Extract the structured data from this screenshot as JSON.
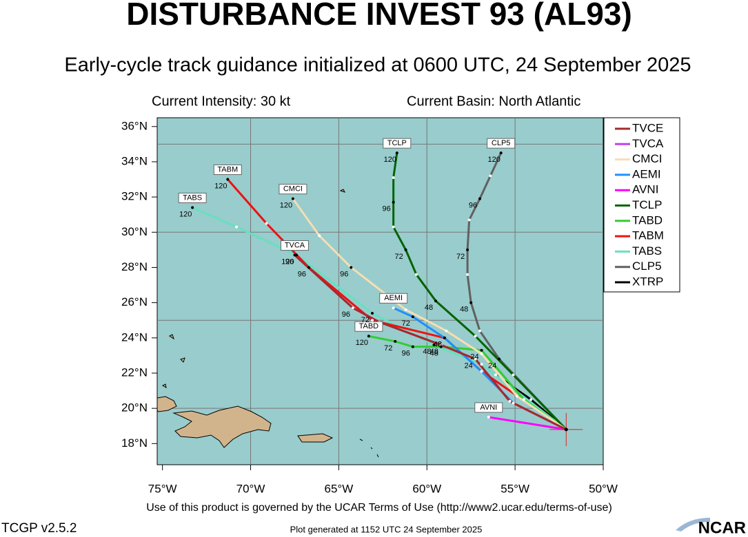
{
  "chart_data": {
    "type": "line",
    "title": "DISTURBANCE INVEST 93 (AL93)",
    "subtitle": "Early-cycle track guidance initialized at 0600 UTC, 24 September 2025",
    "intensity": "Current Intensity: 30 kt",
    "basin": "Current Basin: North Atlantic",
    "xlim": [
      -75.3,
      -50
    ],
    "ylim": [
      16.8,
      36.5
    ],
    "xticks": [
      {
        "value": -75,
        "label": "75°W"
      },
      {
        "value": -70,
        "label": "70°W"
      },
      {
        "value": -65,
        "label": "65°W"
      },
      {
        "value": -60,
        "label": "60°W"
      },
      {
        "value": -55,
        "label": "55°W"
      },
      {
        "value": -50,
        "label": "50°W"
      }
    ],
    "yticks": [
      {
        "value": 18,
        "label": "18°N"
      },
      {
        "value": 20,
        "label": "20°N"
      },
      {
        "value": 22,
        "label": "22°N"
      },
      {
        "value": 24,
        "label": "24°N"
      },
      {
        "value": 26,
        "label": "26°N"
      },
      {
        "value": 28,
        "label": "28°N"
      },
      {
        "value": 30,
        "label": "30°N"
      },
      {
        "value": 32,
        "label": "32°N"
      },
      {
        "value": 34,
        "label": "34°N"
      },
      {
        "value": 36,
        "label": "36°N"
      }
    ],
    "grid_x": [
      -70,
      -65,
      -60,
      -55
    ],
    "grid_y": [
      20,
      25,
      30,
      35
    ],
    "current_position": {
      "x": -52.1,
      "y": 18.8,
      "color": "#e02020"
    },
    "legend": "upper right",
    "series": [
      {
        "name": "TVCE",
        "color": "#a52a2a",
        "label_box": false,
        "x": [
          -52.1,
          -55.3,
          -57.25,
          -59.2,
          -62.7,
          -64.2,
          -67.5
        ],
        "values": [
          18.8,
          20.4,
          22.8,
          23.6,
          24.9,
          25.7,
          28.7
        ],
        "point_labels": [
          null,
          null,
          24,
          48,
          72,
          96,
          null
        ]
      },
      {
        "name": "TVCA",
        "color": "#c040f0",
        "label_box": true,
        "x": [
          -52.1,
          -55.3,
          -57.25,
          -59.2,
          -62.7,
          -64.2,
          -67.5
        ],
        "values": [
          18.8,
          20.4,
          22.8,
          23.6,
          24.9,
          25.7,
          28.7
        ],
        "point_labels": [
          null,
          null,
          null,
          null,
          null,
          null,
          120
        ]
      },
      {
        "name": "CMCI",
        "color": "#f5deb3",
        "label_box": true,
        "x": [
          -52.1,
          -54.9,
          -56.9,
          -58.9,
          -61.2,
          -64.3,
          -66.1,
          -67.6
        ],
        "values": [
          18.8,
          20.7,
          23.1,
          24.4,
          25.6,
          28.0,
          29.8,
          31.9
        ],
        "point_labels": [
          null,
          null,
          null,
          null,
          null,
          96,
          null,
          120
        ]
      },
      {
        "name": "AEMI",
        "color": "#1e90ff",
        "label_box": true,
        "x": [
          -52.1,
          -55.1,
          -56.9,
          -59.0,
          -60.8,
          -61.9
        ],
        "values": [
          18.8,
          20.3,
          22.1,
          24.0,
          25.2,
          25.7
        ],
        "point_labels": [
          null,
          null,
          null,
          48,
          72,
          null
        ]
      },
      {
        "name": "AVNI",
        "color": "#ff00ff",
        "label_box": true,
        "x": [
          -52.1,
          -56.5
        ],
        "values": [
          18.8,
          19.5
        ],
        "point_labels": [
          null,
          null
        ]
      },
      {
        "name": "TCLP",
        "color": "#006400",
        "label_box": true,
        "x": [
          -52.1,
          -55.1,
          -57.25,
          -59.5,
          -60.6,
          -61.2,
          -61.9,
          -61.9,
          -61.9,
          -61.7
        ],
        "values": [
          18.8,
          21.9,
          24.1,
          26.1,
          27.6,
          29.0,
          30.3,
          31.7,
          33.1,
          34.5
        ],
        "point_labels": [
          null,
          null,
          null,
          48,
          null,
          72,
          null,
          96,
          null,
          120
        ]
      },
      {
        "name": "TABD",
        "color": "#32cd32",
        "label_box": true,
        "x": [
          -52.1,
          -54.5,
          -56.9,
          -59.2,
          -60.8,
          -61.8,
          -63.3
        ],
        "values": [
          18.8,
          20.5,
          23.3,
          23.5,
          23.5,
          23.8,
          24.1
        ],
        "point_labels": [
          null,
          null,
          24,
          48,
          96,
          72,
          120
        ]
      },
      {
        "name": "TABM",
        "color": "#ee1111",
        "label_box": true,
        "x": [
          -52.1,
          -56.9,
          -59.0,
          -63.1,
          -66.7,
          -69.1,
          -71.3
        ],
        "values": [
          18.8,
          22.1,
          24.0,
          25.0,
          28.0,
          30.5,
          33.0
        ],
        "point_labels": [
          null,
          null,
          48,
          null,
          96,
          null,
          120
        ]
      },
      {
        "name": "TABS",
        "color": "#66e0c0",
        "label_box": true,
        "x": [
          -52.1,
          -56.9,
          -59.6,
          -63.1,
          -67.4,
          -70.8,
          -73.3
        ],
        "values": [
          18.8,
          22.5,
          23.6,
          25.4,
          28.7,
          30.3,
          31.4
        ],
        "point_labels": [
          null,
          null,
          48,
          72,
          96,
          null,
          120
        ]
      },
      {
        "name": "CLP5",
        "color": "#606060",
        "label_box": true,
        "x": [
          -52.1,
          -55.9,
          -57.0,
          -57.5,
          -57.7,
          -57.7,
          -57.6,
          -57.0,
          -56.4,
          -55.8
        ],
        "values": [
          18.8,
          22.8,
          24.4,
          26.0,
          27.6,
          29.0,
          30.7,
          31.9,
          33.2,
          34.5
        ],
        "point_labels": [
          null,
          24,
          null,
          48,
          null,
          72,
          null,
          96,
          null,
          120
        ]
      },
      {
        "name": "XTRP",
        "color": "#000000",
        "label_box": false,
        "x": [
          -52.1,
          -54.1,
          -56.1
        ],
        "values": [
          18.8,
          20.5,
          21.9
        ],
        "point_labels": [
          null,
          null,
          null
        ]
      }
    ]
  },
  "footer": {
    "terms": "Use of this product is governed by the UCAR Terms of Use (http://www2.ucar.edu/terms-of-use)",
    "version": "TCGP v2.5.2",
    "generated": "Plot generated at 1152 UTC   24 September 2025",
    "logo": "NCAR"
  }
}
